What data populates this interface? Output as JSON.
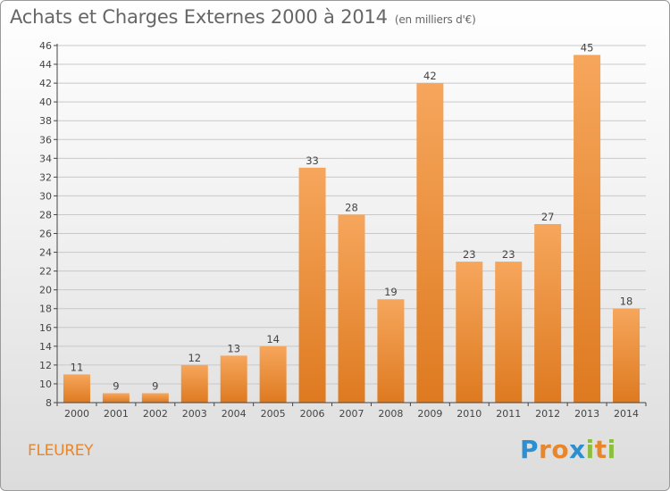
{
  "title": "Achats et Charges Externes 2000 à 2014",
  "unit": "(en milliers d'€)",
  "town": "FLEUREY",
  "brand": {
    "letters": [
      "P",
      "r",
      "o",
      "x",
      "i",
      "t",
      "i"
    ],
    "colors": [
      "#2d8fd0",
      "#e8862c",
      "#e8862c",
      "#2d8fd0",
      "#8cbf3f",
      "#e8862c",
      "#8cbf3f"
    ]
  },
  "colors": {
    "bar_light": "#f6a65c",
    "bar_dark": "#de7a20",
    "axis": "#444444",
    "grid": "#c8c8c8",
    "text": "#444444"
  },
  "chart_data": {
    "type": "bar",
    "categories": [
      "2000",
      "2001",
      "2002",
      "2003",
      "2004",
      "2005",
      "2006",
      "2007",
      "2008",
      "2009",
      "2010",
      "2011",
      "2012",
      "2013",
      "2014"
    ],
    "values": [
      11,
      9,
      9,
      12,
      13,
      14,
      33,
      28,
      19,
      42,
      23,
      23,
      27,
      45,
      18
    ],
    "ylim": [
      8,
      46
    ],
    "yticks": [
      8,
      10,
      12,
      14,
      16,
      18,
      20,
      22,
      24,
      26,
      28,
      30,
      32,
      34,
      36,
      38,
      40,
      42,
      44,
      46
    ],
    "grid": true,
    "data_labels": true
  }
}
